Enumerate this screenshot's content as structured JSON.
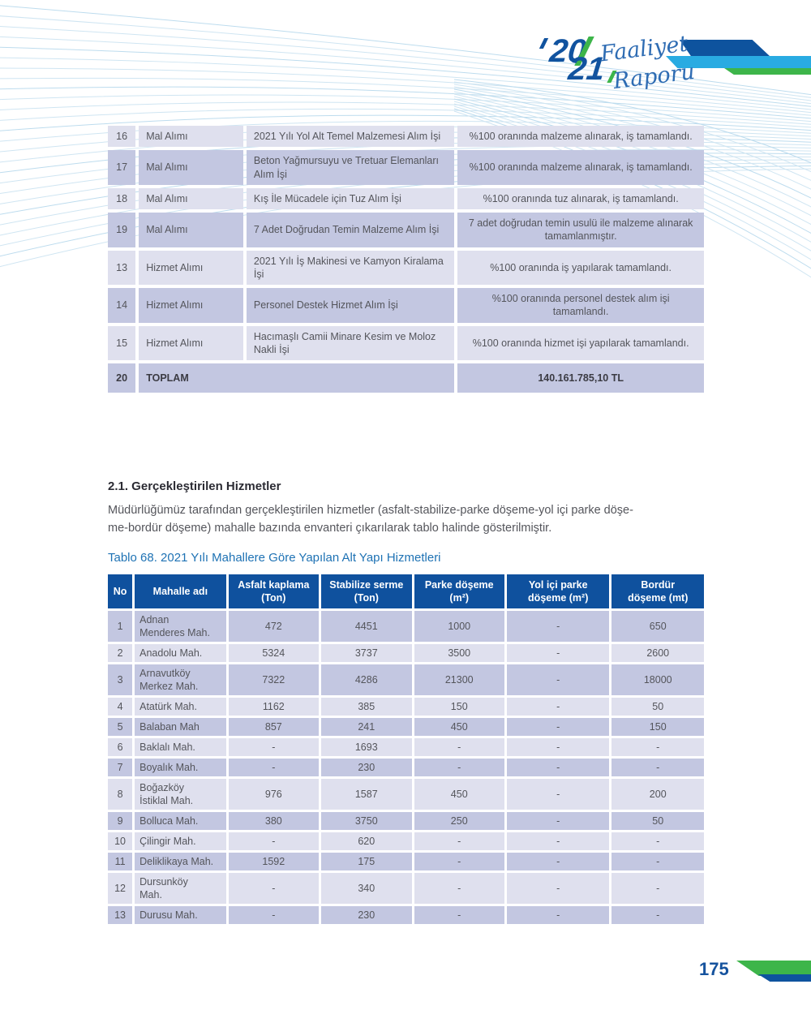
{
  "logo": {
    "year_top": "20",
    "year_bottom": "21",
    "script_line1": "Faaliyet",
    "script_line2": "Raporu"
  },
  "procurement_table": {
    "rows": [
      {
        "no": "16",
        "type": "Mal Alımı",
        "description": "2021 Yılı Yol Alt Temel Malzemesi Alım İşi",
        "result": "%100 oranında malzeme alınarak, iş tamamlandı."
      },
      {
        "no": "17",
        "type": "Mal Alımı",
        "description": "Beton Yağmursuyu ve Tretuar Elemanları Alım İşi",
        "result": "%100 oranında malzeme alınarak, iş tamamlandı."
      },
      {
        "no": "18",
        "type": "Mal Alımı",
        "description": "Kış İle Mücadele için Tuz Alım İşi",
        "result": "%100 oranında tuz alınarak, iş tamamlandı."
      },
      {
        "no": "19",
        "type": "Mal Alımı",
        "description": "7 Adet Doğrudan Temin Malzeme Alım İşi",
        "result": "7 adet doğrudan temin usulü ile malzeme alınarak tamamlanmıştır."
      },
      {
        "no": "13",
        "type": "Hizmet Alımı",
        "description": "2021 Yılı İş Makinesi ve Kamyon Kiralama İşi",
        "result": "%100 oranında iş yapılarak tamamlandı."
      },
      {
        "no": "14",
        "type": "Hizmet Alımı",
        "description": "Personel Destek Hizmet Alım İşi",
        "result": "%100 oranında personel destek alım işi tamamlandı."
      },
      {
        "no": "15",
        "type": "Hizmet Alımı",
        "description": "Hacımaşlı Camii Minare Kesim ve Moloz Nakli İşi",
        "result": "%100 oranında hizmet işi yapılarak tamamlandı."
      }
    ],
    "total": {
      "no": "20",
      "label": "TOPLAM",
      "amount": "140.161.785,10 TL"
    }
  },
  "section": {
    "heading": "2.1. Gerçekleştirilen Hizmetler",
    "paragraph_lines": [
      "Müdürlüğümüz tarafından gerçekleştirilen hizmetler (asfalt-stabilize-parke döşeme-yol içi parke döşe-",
      "me-bordür döşeme) mahalle bazında envanteri çıkarılarak tablo halinde gösterilmiştir."
    ],
    "table_caption": "Tablo 68. 2021 Yılı Mahallere Göre Yapılan Alt Yapı Hizmetleri"
  },
  "services_table": {
    "headers": [
      [
        "No"
      ],
      [
        "Mahalle adı"
      ],
      [
        "Asfalt kaplama",
        "(Ton)"
      ],
      [
        "Stabilize serme",
        "(Ton)"
      ],
      [
        "Parke döşeme",
        "(m²)"
      ],
      [
        "Yol içi parke",
        "döşeme (m²)"
      ],
      [
        "Bordür",
        "döşeme (mt)"
      ]
    ],
    "rows": [
      {
        "no": "1",
        "name": [
          "Adnan",
          "Menderes Mah."
        ],
        "asfalt": "472",
        "stabilize": "4451",
        "parke": "1000",
        "yol_ici": "-",
        "bordur": "650"
      },
      {
        "no": "2",
        "name": [
          "Anadolu Mah."
        ],
        "asfalt": "5324",
        "stabilize": "3737",
        "parke": "3500",
        "yol_ici": "-",
        "bordur": "2600"
      },
      {
        "no": "3",
        "name": [
          "Arnavutköy",
          "Merkez Mah."
        ],
        "asfalt": "7322",
        "stabilize": "4286",
        "parke": "21300",
        "yol_ici": "-",
        "bordur": "18000"
      },
      {
        "no": "4",
        "name": [
          "Atatürk Mah."
        ],
        "asfalt": "1162",
        "stabilize": "385",
        "parke": "150",
        "yol_ici": "-",
        "bordur": "50"
      },
      {
        "no": "5",
        "name": [
          "Balaban Mah"
        ],
        "asfalt": "857",
        "stabilize": "241",
        "parke": "450",
        "yol_ici": "-",
        "bordur": "150"
      },
      {
        "no": "6",
        "name": [
          "Baklalı Mah."
        ],
        "asfalt": "-",
        "stabilize": "1693",
        "parke": "-",
        "yol_ici": "-",
        "bordur": "-"
      },
      {
        "no": "7",
        "name": [
          "Boyalık Mah."
        ],
        "asfalt": "-",
        "stabilize": "230",
        "parke": "-",
        "yol_ici": "-",
        "bordur": "-"
      },
      {
        "no": "8",
        "name": [
          "Boğazköy",
          "İstiklal Mah."
        ],
        "asfalt": "976",
        "stabilize": "1587",
        "parke": "450",
        "yol_ici": "-",
        "bordur": "200"
      },
      {
        "no": "9",
        "name": [
          "Bolluca Mah."
        ],
        "asfalt": "380",
        "stabilize": "3750",
        "parke": "250",
        "yol_ici": "-",
        "bordur": "50"
      },
      {
        "no": "10",
        "name": [
          "Çilingir Mah."
        ],
        "asfalt": "-",
        "stabilize": "620",
        "parke": "-",
        "yol_ici": "-",
        "bordur": "-"
      },
      {
        "no": "11",
        "name": [
          "Deliklikaya Mah."
        ],
        "asfalt": "1592",
        "stabilize": "175",
        "parke": "-",
        "yol_ici": "-",
        "bordur": "-"
      },
      {
        "no": "12",
        "name": [
          "Dursunköy",
          "Mah."
        ],
        "asfalt": "-",
        "stabilize": "340",
        "parke": "-",
        "yol_ici": "-",
        "bordur": "-"
      },
      {
        "no": "13",
        "name": [
          "Durusu Mah."
        ],
        "asfalt": "-",
        "stabilize": "230",
        "parke": "-",
        "yol_ici": "-",
        "bordur": "-"
      }
    ]
  },
  "footer": {
    "page_number": "175"
  },
  "colors": {
    "header_blue": "#0f519e",
    "row_dark": "#c3c7e1",
    "row_light": "#dfe0ee",
    "caption_blue": "#1e72b4",
    "accent_green": "#3db54a",
    "accent_cyan": "#29abe2",
    "accent_navy": "#0e539e",
    "page_number_blue": "#16539e",
    "body_text": "#54555b"
  }
}
